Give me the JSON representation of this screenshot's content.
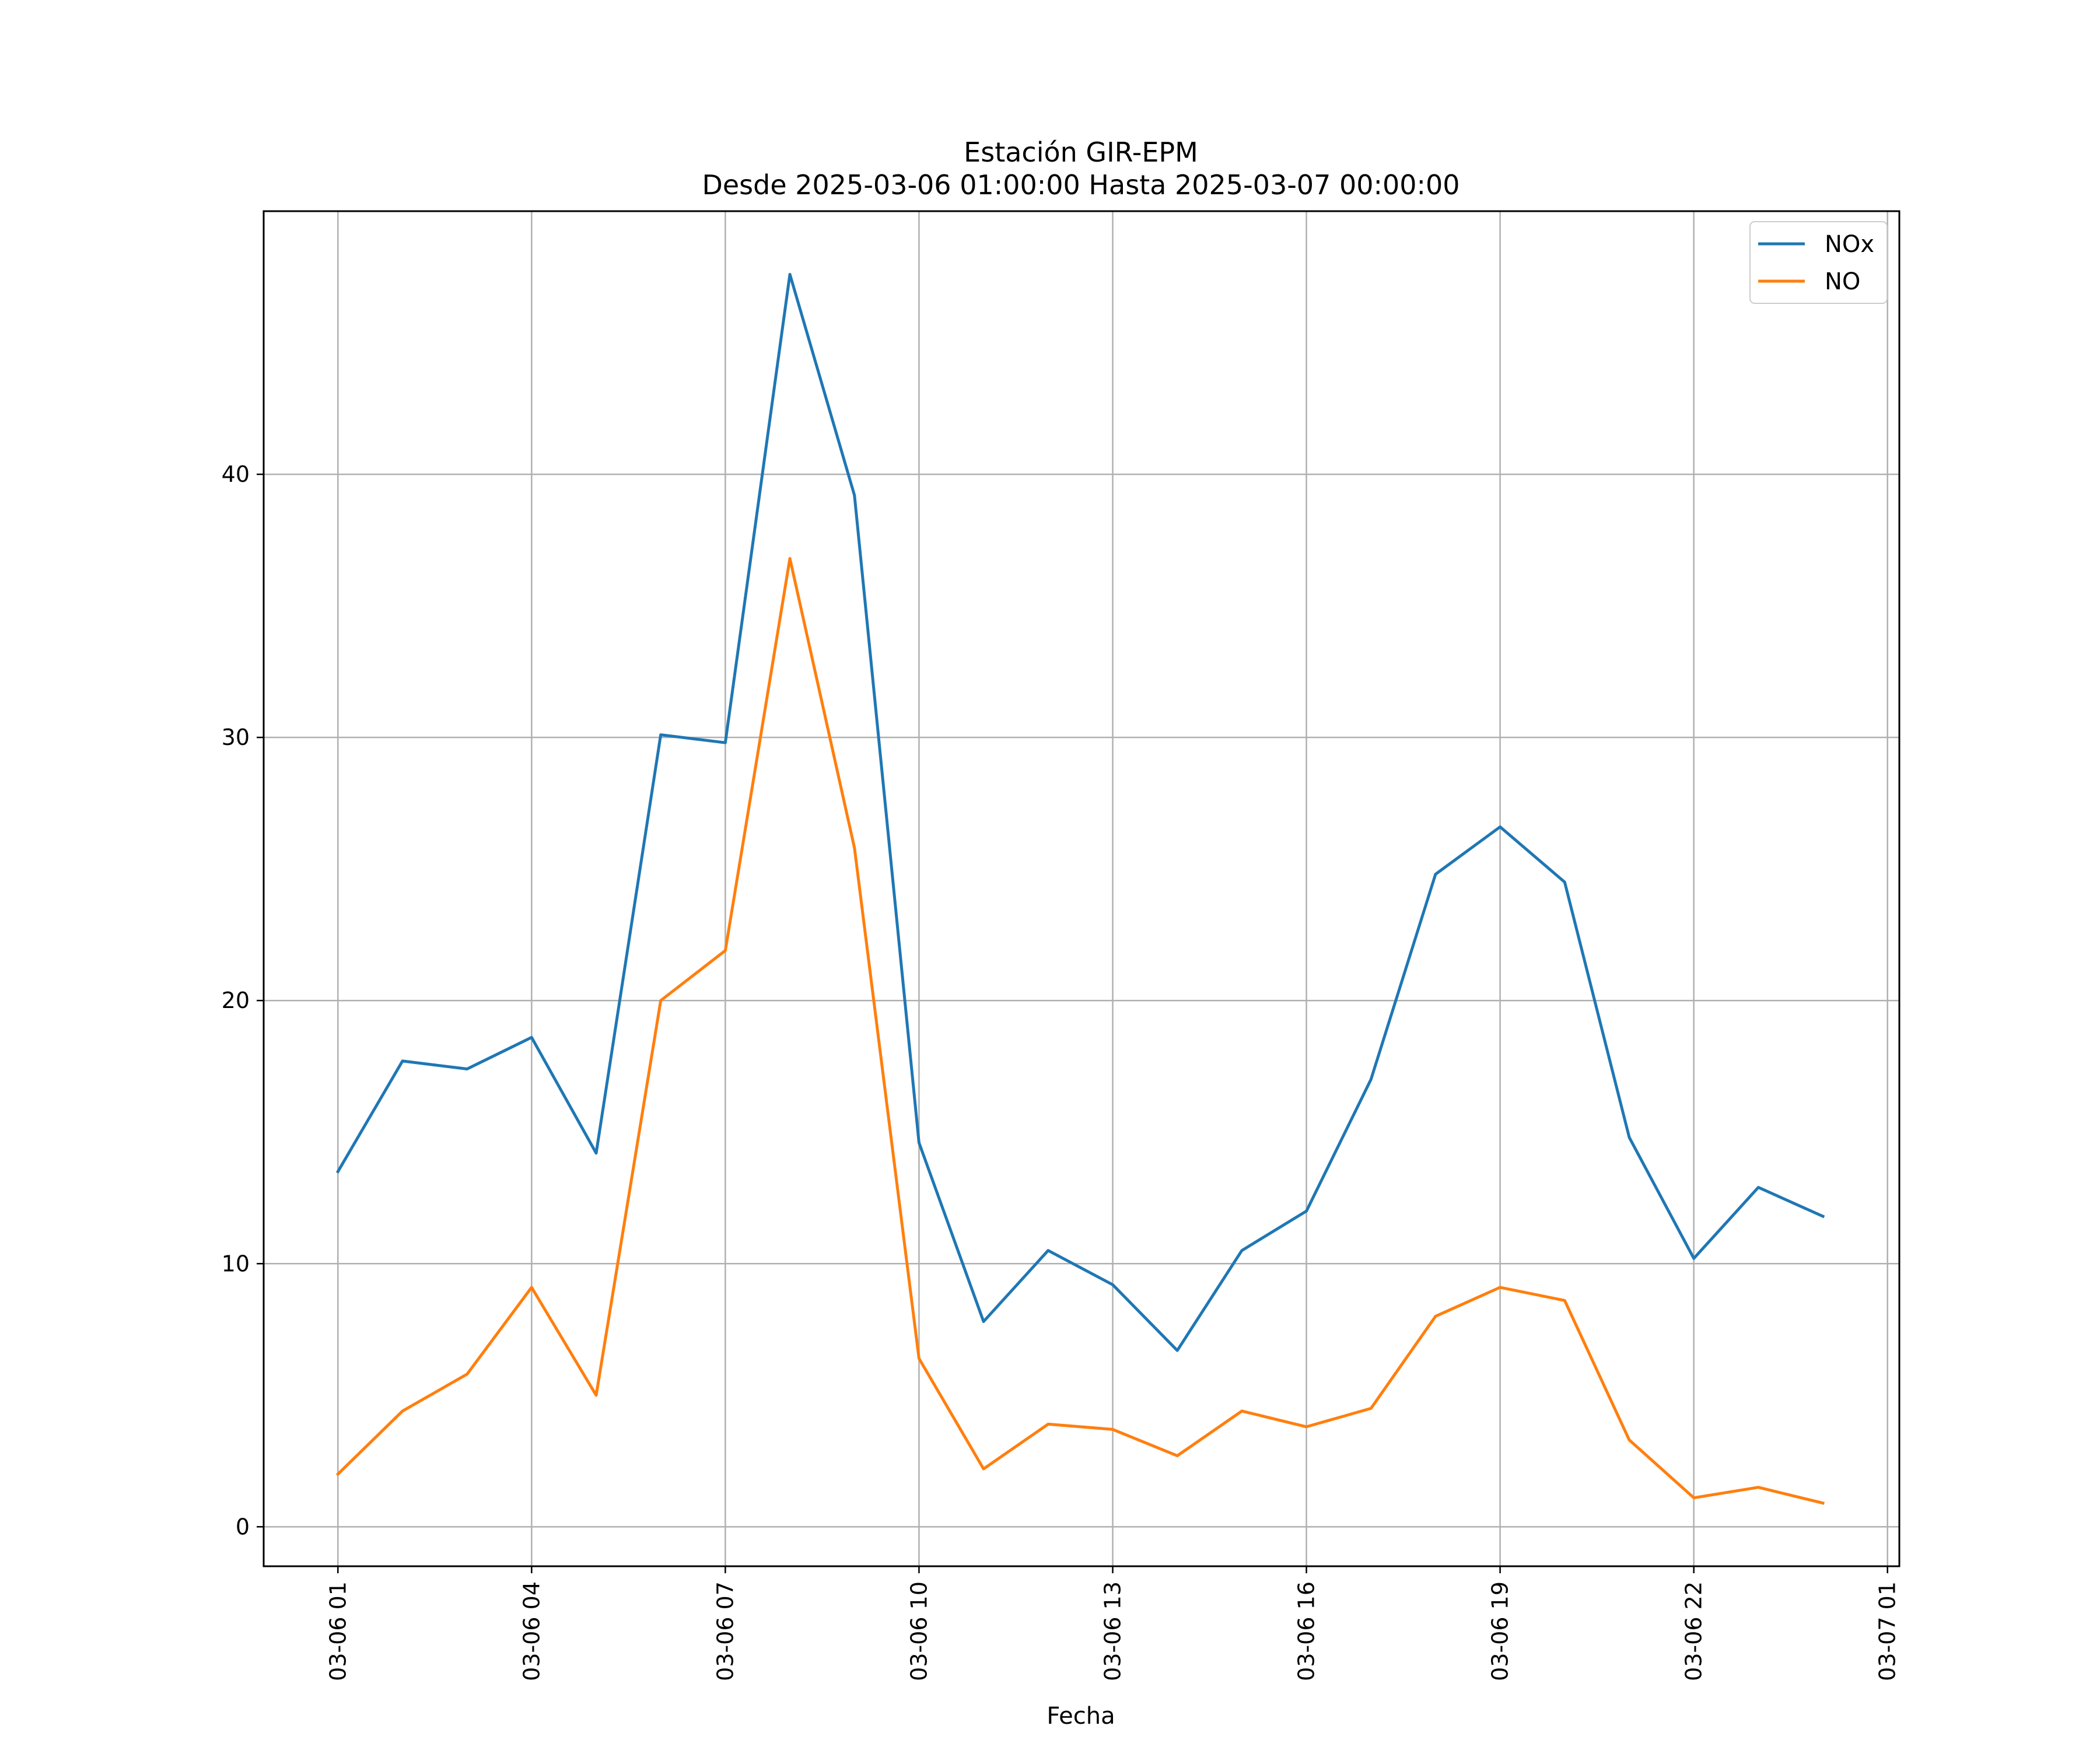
{
  "chart_data": {
    "type": "line",
    "title": "Estación GIR-EPM",
    "subtitle": "Desde 2025-03-06 01:00:00 Hasta 2025-03-07 00:00:00",
    "xlabel": "Fecha",
    "ylabel": "",
    "x": [
      "2025-03-06 01:00",
      "2025-03-06 02:00",
      "2025-03-06 03:00",
      "2025-03-06 04:00",
      "2025-03-06 05:00",
      "2025-03-06 06:00",
      "2025-03-06 07:00",
      "2025-03-06 08:00",
      "2025-03-06 09:00",
      "2025-03-06 10:00",
      "2025-03-06 11:00",
      "2025-03-06 12:00",
      "2025-03-06 13:00",
      "2025-03-06 14:00",
      "2025-03-06 15:00",
      "2025-03-06 16:00",
      "2025-03-06 17:00",
      "2025-03-06 18:00",
      "2025-03-06 19:00",
      "2025-03-06 20:00",
      "2025-03-06 21:00",
      "2025-03-06 22:00",
      "2025-03-06 23:00",
      "2025-03-07 00:00"
    ],
    "x_tick_labels": [
      "03-06 01",
      "03-06 04",
      "03-06 07",
      "03-06 10",
      "03-06 13",
      "03-06 16",
      "03-06 19",
      "03-06 22",
      "03-07 01"
    ],
    "y_ticks": [
      0,
      10,
      20,
      30,
      40
    ],
    "ylim": [
      -1.5,
      50
    ],
    "xlim": [
      "2025-03-05 23:51",
      "2025-03-07 01:11"
    ],
    "grid": true,
    "legend_position": "top-right",
    "series": [
      {
        "name": "NOx",
        "color": "#1f77b4",
        "values": [
          13.5,
          17.7,
          17.4,
          18.6,
          14.2,
          30.1,
          29.8,
          47.6,
          39.2,
          14.6,
          7.8,
          10.5,
          9.2,
          6.7,
          10.5,
          12.0,
          17.0,
          24.8,
          26.6,
          24.5,
          14.8,
          10.2,
          12.9,
          11.8
        ]
      },
      {
        "name": "NO",
        "color": "#ff7f0e",
        "values": [
          2.0,
          4.4,
          5.8,
          9.1,
          5.0,
          20.0,
          21.9,
          36.8,
          25.8,
          6.4,
          2.2,
          3.9,
          3.7,
          2.7,
          4.4,
          3.8,
          4.5,
          8.0,
          9.1,
          8.6,
          3.3,
          1.1,
          1.5,
          0.9
        ]
      }
    ]
  }
}
